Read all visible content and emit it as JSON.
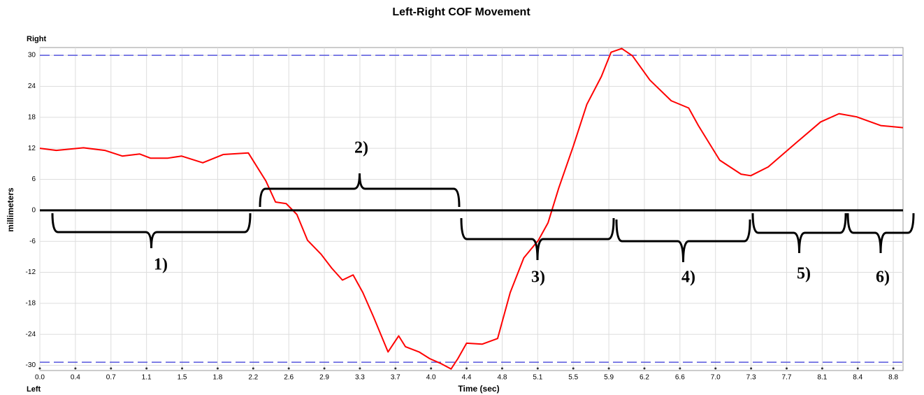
{
  "chart_data": {
    "type": "line",
    "title": "Left-Right COF Movement",
    "x_label": "Time (sec)",
    "y_label": "millimeters",
    "y_top_label": "Right",
    "y_bottom_label": "Left",
    "xlim": [
      0,
      8.9
    ],
    "ylim": [
      -31,
      31.5
    ],
    "xticks": [
      {
        "value": 0,
        "label": "0.0"
      },
      {
        "value": 0.3667,
        "label": "0.4"
      },
      {
        "value": 0.7333,
        "label": "0.7"
      },
      1.1,
      {
        "value": 1.4667,
        "label": "1.5"
      },
      {
        "value": 1.8333,
        "label": "1.8"
      },
      2.2,
      {
        "value": 2.5667,
        "label": "2.6"
      },
      {
        "value": 2.9333,
        "label": "2.9"
      },
      3.3,
      {
        "value": 3.6667,
        "label": "3.7"
      },
      {
        "value": 4.0333,
        "label": "4.0"
      },
      4.4,
      {
        "value": 4.7667,
        "label": "4.8"
      },
      {
        "value": 5.1333,
        "label": "5.1"
      },
      5.5,
      {
        "value": 5.8667,
        "label": "5.9"
      },
      {
        "value": 6.2333,
        "label": "6.2"
      },
      6.6,
      {
        "value": 6.9667,
        "label": "7.0"
      },
      {
        "value": 7.3333,
        "label": "7.3"
      },
      7.7,
      {
        "value": 8.0667,
        "label": "8.1"
      },
      {
        "value": 8.4333,
        "label": "8.4"
      },
      8.8
    ],
    "yticks": [
      30,
      24,
      18,
      12,
      6,
      0,
      -6,
      -12,
      -18,
      -24,
      -30
    ],
    "grid": true,
    "reference_lines": {
      "values": [
        30,
        -29.4
      ],
      "color": "#5555dd"
    },
    "zero_line": 0,
    "annotations": [
      "1)",
      "2)",
      "3)",
      "4)",
      "5)",
      "6)"
    ],
    "series": [
      {
        "name": "COF",
        "color": "#ff0000",
        "x": [
          0,
          0.17,
          0.45,
          0.67,
          0.85,
          1.03,
          1.14,
          1.32,
          1.46,
          1.68,
          1.89,
          2.15,
          2.33,
          2.43,
          2.54,
          2.65,
          2.76,
          2.9,
          3.01,
          3.12,
          3.23,
          3.33,
          3.44,
          3.59,
          3.7,
          3.77,
          3.91,
          4.02,
          4.13,
          4.24,
          4.31,
          4.4,
          4.56,
          4.72,
          4.85,
          4.99,
          5.14,
          5.24,
          5.35,
          5.5,
          5.64,
          5.79,
          5.89,
          6.0,
          6.11,
          6.29,
          6.51,
          6.69,
          6.79,
          7.01,
          7.23,
          7.33,
          7.51,
          7.8,
          8.05,
          8.24,
          8.42,
          8.67,
          8.9
        ],
        "values": [
          12.0,
          11.6,
          12.1,
          11.6,
          10.5,
          10.9,
          10.1,
          10.1,
          10.5,
          9.2,
          10.8,
          11.1,
          5.7,
          1.6,
          1.3,
          -0.8,
          -5.8,
          -8.5,
          -11.2,
          -13.5,
          -12.5,
          -15.9,
          -20.6,
          -27.4,
          -24.3,
          -26.4,
          -27.4,
          -28.7,
          -29.6,
          -30.7,
          -28.7,
          -25.7,
          -25.9,
          -24.8,
          -15.9,
          -9.2,
          -5.8,
          -2.4,
          4.3,
          12.4,
          20.5,
          25.9,
          30.6,
          31.3,
          29.9,
          25.2,
          21.2,
          19.8,
          16.4,
          9.7,
          7.0,
          6.7,
          8.4,
          13.1,
          17.1,
          18.7,
          18.1,
          16.4,
          16.0
        ]
      }
    ]
  }
}
